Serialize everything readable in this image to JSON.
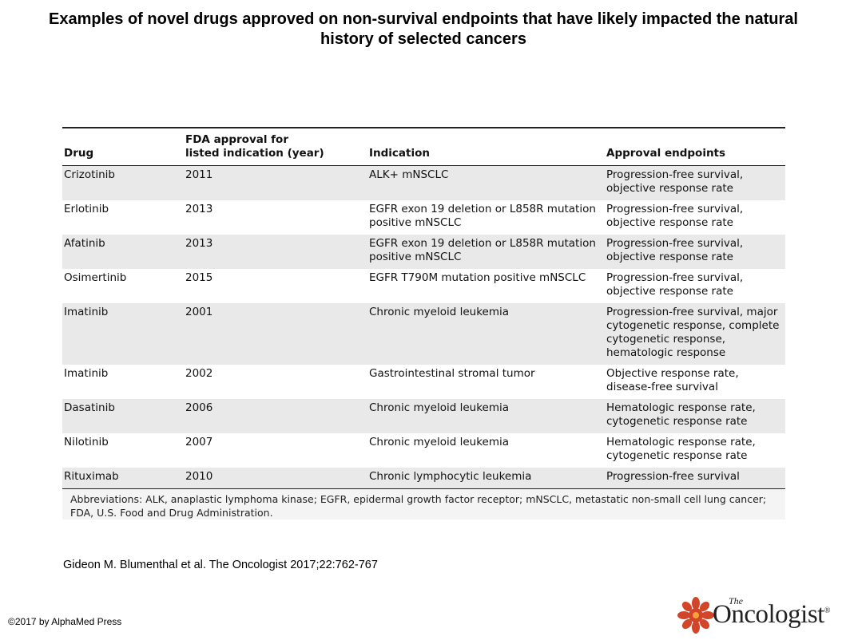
{
  "title": "Examples of novel drugs approved on non-survival endpoints that have likely impacted the natural history of selected cancers",
  "table": {
    "headers": {
      "drug": "Drug",
      "fda_line1": "FDA approval for",
      "fda_line2": "listed indication (year)",
      "indication": "Indication",
      "endpoints": "Approval endpoints"
    },
    "rows": [
      {
        "drug": "Crizotinib",
        "year": "2011",
        "indication": "ALK+ mNSCLC",
        "endpoints": "Progression-free survival, objective response rate"
      },
      {
        "drug": "Erlotinib",
        "year": "2013",
        "indication": "EGFR exon 19 deletion or L858R mutation positive mNSCLC",
        "endpoints": "Progression-free survival, objective response rate"
      },
      {
        "drug": "Afatinib",
        "year": "2013",
        "indication": "EGFR exon 19 deletion or L858R mutation positive mNSCLC",
        "endpoints": "Progression-free survival, objective response rate"
      },
      {
        "drug": "Osimertinib",
        "year": "2015",
        "indication": "EGFR T790M mutation positive mNSCLC",
        "endpoints": "Progression-free survival, objective response rate"
      },
      {
        "drug": "Imatinib",
        "year": "2001",
        "indication": "Chronic myeloid leukemia",
        "endpoints": "Progression-free survival, major cytogenetic response, complete cytogenetic response, hematologic response"
      },
      {
        "drug": "Imatinib",
        "year": "2002",
        "indication": "Gastrointestinal stromal tumor",
        "endpoints": "Objective response rate, disease-free survival"
      },
      {
        "drug": "Dasatinib",
        "year": "2006",
        "indication": "Chronic myeloid leukemia",
        "endpoints": "Hematologic response rate, cytogenetic response rate"
      },
      {
        "drug": "Nilotinib",
        "year": "2007",
        "indication": "Chronic myeloid leukemia",
        "endpoints": "Hematologic response rate, cytogenetic response rate"
      },
      {
        "drug": "Rituximab",
        "year": "2010",
        "indication": "Chronic lymphocytic leukemia",
        "endpoints": "Progression-free survival"
      }
    ],
    "footnote": "Abbreviations: ALK, anaplastic lymphoma kinase; EGFR, epidermal growth factor receptor; mNSCLC, metastatic non-small cell lung cancer; FDA, U.S. Food and Drug Administration."
  },
  "citation": "Gideon M. Blumenthal et al. The Oncologist 2017;22:762-767",
  "copyright": "©2017 by AlphaMed Press",
  "logo": {
    "the": "The",
    "name": "Oncologist",
    "reg": "®"
  },
  "colors": {
    "shaded_row": "#e9e9e9",
    "logo_flower": "#d2452a"
  }
}
